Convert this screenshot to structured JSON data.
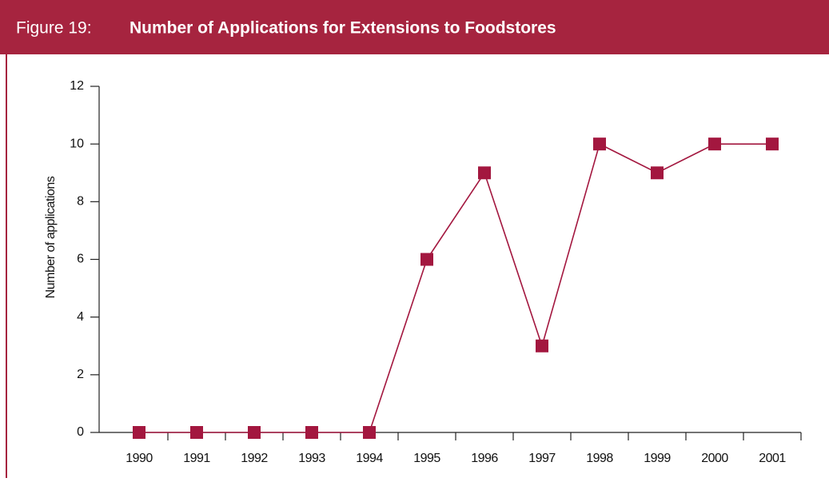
{
  "chart_data": {
    "type": "line",
    "figure_label": "Figure 19:",
    "title": "Number of Applications for Extensions to Foodstores",
    "y_label": "Number of applications",
    "categories": [
      "1990",
      "1991",
      "1992",
      "1993",
      "1994",
      "1995",
      "1996",
      "1997",
      "1998",
      "1999",
      "2000",
      "2001"
    ],
    "series": [
      {
        "color": "#a3173f",
        "values": [
          0,
          0,
          0,
          0,
          0,
          6,
          9,
          3,
          10,
          9,
          10,
          10
        ]
      }
    ],
    "ylim": [
      0,
      12
    ],
    "yticks": [
      0,
      2,
      4,
      6,
      8,
      10,
      12
    ],
    "header_color": "#a6243f"
  }
}
